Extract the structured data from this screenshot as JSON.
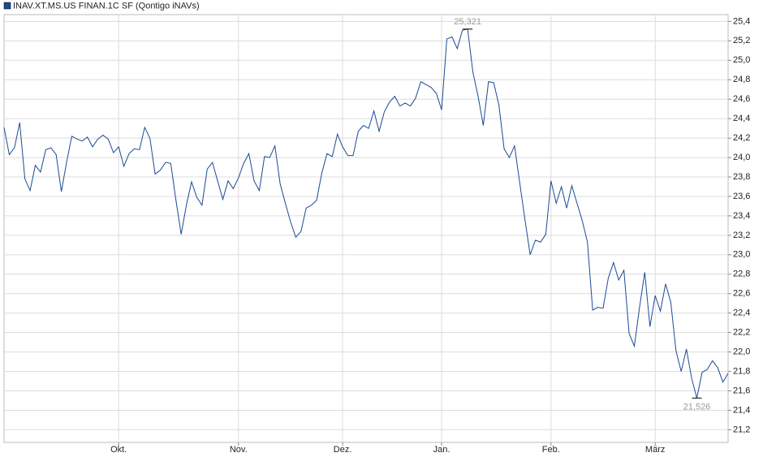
{
  "chart_data": {
    "type": "line",
    "legend": "INAV.XT.MS.US FINAN.1C SF (Qontigo iNAVs)",
    "color": "#1a4a94",
    "grid": true,
    "xlim": [
      0,
      139
    ],
    "xticks": [
      {
        "value": 22,
        "label": "Okt."
      },
      {
        "value": 45,
        "label": "Nov."
      },
      {
        "value": 65,
        "label": "Dez."
      },
      {
        "value": 84,
        "label": "Jan."
      },
      {
        "value": 105,
        "label": "Feb."
      },
      {
        "value": 125,
        "label": "März"
      }
    ],
    "ylim": [
      21.07,
      25.47
    ],
    "yticks": [
      {
        "value": 21.2,
        "label": "21,2"
      },
      {
        "value": 21.4,
        "label": "21,4"
      },
      {
        "value": 21.6,
        "label": "21,6"
      },
      {
        "value": 21.8,
        "label": "21,8"
      },
      {
        "value": 22.0,
        "label": "22,0"
      },
      {
        "value": 22.2,
        "label": "22,2"
      },
      {
        "value": 22.4,
        "label": "22,4"
      },
      {
        "value": 22.6,
        "label": "22,6"
      },
      {
        "value": 22.8,
        "label": "22,8"
      },
      {
        "value": 23.0,
        "label": "23,0"
      },
      {
        "value": 23.2,
        "label": "23,2"
      },
      {
        "value": 23.4,
        "label": "23,4"
      },
      {
        "value": 23.6,
        "label": "23,6"
      },
      {
        "value": 23.8,
        "label": "23,8"
      },
      {
        "value": 24.0,
        "label": "24,0"
      },
      {
        "value": 24.2,
        "label": "24,2"
      },
      {
        "value": 24.4,
        "label": "24,4"
      },
      {
        "value": 24.6,
        "label": "24,6"
      },
      {
        "value": 24.8,
        "label": "24,8"
      },
      {
        "value": 25.0,
        "label": "25,0"
      },
      {
        "value": 25.2,
        "label": "25,2"
      },
      {
        "value": 25.4,
        "label": "25,4"
      }
    ],
    "values": [
      24.31,
      24.03,
      24.1,
      24.36,
      23.78,
      23.66,
      23.92,
      23.85,
      24.08,
      24.1,
      24.03,
      23.65,
      23.95,
      24.22,
      24.19,
      24.17,
      24.21,
      24.11,
      24.19,
      24.23,
      24.19,
      24.05,
      24.11,
      23.91,
      24.04,
      24.09,
      24.08,
      24.31,
      24.2,
      23.83,
      23.87,
      23.95,
      23.94,
      23.56,
      23.21,
      23.51,
      23.75,
      23.59,
      23.51,
      23.88,
      23.95,
      23.76,
      23.57,
      23.76,
      23.68,
      23.79,
      23.94,
      24.04,
      23.76,
      23.66,
      24.01,
      24.0,
      24.12,
      23.73,
      23.53,
      23.34,
      23.18,
      23.24,
      23.48,
      23.51,
      23.56,
      23.84,
      24.04,
      24.01,
      24.24,
      24.11,
      24.02,
      24.02,
      24.27,
      24.33,
      24.3,
      24.48,
      24.27,
      24.47,
      24.57,
      24.63,
      24.53,
      24.56,
      24.53,
      24.61,
      24.78,
      24.75,
      24.72,
      24.66,
      24.49,
      25.22,
      25.24,
      25.12,
      25.31,
      25.321,
      24.88,
      24.63,
      24.33,
      24.78,
      24.77,
      24.54,
      24.09,
      24.0,
      24.12,
      23.74,
      23.36,
      23.0,
      23.15,
      23.13,
      23.21,
      23.76,
      23.53,
      23.7,
      23.48,
      23.71,
      23.53,
      23.35,
      23.13,
      22.43,
      22.46,
      22.45,
      22.76,
      22.92,
      22.74,
      22.84,
      22.19,
      22.06,
      22.46,
      22.82,
      22.26,
      22.58,
      22.42,
      22.7,
      22.51,
      22.01,
      21.8,
      22.03,
      21.73,
      21.526,
      21.79,
      21.82,
      21.91,
      21.84,
      21.69,
      21.78
    ],
    "value_labels": [
      null,
      null,
      null,
      null,
      null,
      null,
      null,
      null,
      null,
      null,
      null,
      null,
      null,
      null,
      null,
      null,
      null,
      null,
      null,
      null,
      null,
      null,
      null,
      null,
      null,
      null,
      null,
      null,
      null,
      null,
      null,
      null,
      null,
      null,
      null,
      null,
      null,
      null,
      null,
      null,
      null,
      null,
      null,
      null,
      null,
      null,
      null,
      null,
      null,
      null,
      null,
      null,
      null,
      null,
      null,
      null,
      null,
      null,
      null,
      null,
      null,
      null,
      null,
      null,
      null,
      null,
      null,
      null,
      null,
      null,
      null,
      null,
      null,
      null,
      null,
      null,
      null,
      null,
      null,
      null,
      null,
      null,
      null,
      null,
      null,
      null,
      null,
      null,
      null,
      "25,321",
      null,
      null,
      null,
      null,
      null,
      null,
      null,
      null,
      null,
      null,
      null,
      null,
      null,
      null,
      null,
      null,
      null,
      null,
      null,
      null,
      null,
      null,
      null,
      null,
      null,
      null,
      null,
      null,
      null,
      null,
      null,
      null,
      null,
      null,
      null,
      null,
      null,
      null,
      null,
      null,
      null,
      null,
      null,
      "21,526",
      null,
      null,
      null,
      null,
      null,
      null
    ]
  }
}
